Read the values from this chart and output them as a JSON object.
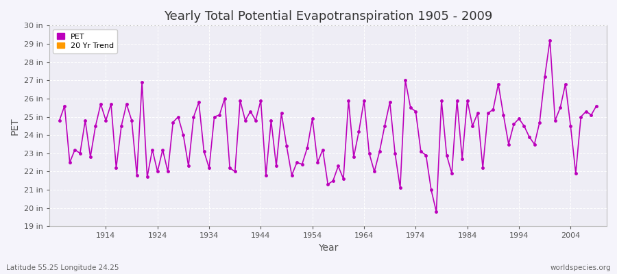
{
  "title": "Yearly Total Potential Evapotranspiration 1905 - 2009",
  "xlabel": "Year",
  "ylabel": "PET",
  "subtitle_left": "Latitude 55.25 Longitude 24.25",
  "subtitle_right": "worldspecies.org",
  "background_color": "#f5f4fb",
  "plot_bg_color": "#eeedf5",
  "grid_color": "#ffffff",
  "line_color": "#bb00bb",
  "trend_color": "#ff9900",
  "ylim_min": 19,
  "ylim_max": 30,
  "ytick_labels": [
    "19 in",
    "20 in",
    "21 in",
    "22 in",
    "23 in",
    "24 in",
    "25 in",
    "26 in",
    "27 in",
    "28 in",
    "29 in",
    "30 in"
  ],
  "ytick_values": [
    19,
    20,
    21,
    22,
    23,
    24,
    25,
    26,
    27,
    28,
    29,
    30
  ],
  "xtick_years": [
    1914,
    1924,
    1934,
    1944,
    1954,
    1964,
    1974,
    1984,
    1994,
    2004
  ],
  "years": [
    1905,
    1906,
    1907,
    1908,
    1909,
    1910,
    1911,
    1912,
    1913,
    1914,
    1915,
    1916,
    1917,
    1918,
    1919,
    1920,
    1921,
    1922,
    1923,
    1924,
    1925,
    1926,
    1927,
    1928,
    1929,
    1930,
    1931,
    1932,
    1933,
    1934,
    1935,
    1936,
    1937,
    1938,
    1939,
    1940,
    1941,
    1942,
    1943,
    1944,
    1945,
    1946,
    1947,
    1948,
    1949,
    1950,
    1951,
    1952,
    1953,
    1954,
    1955,
    1956,
    1957,
    1958,
    1959,
    1960,
    1961,
    1962,
    1963,
    1964,
    1965,
    1966,
    1967,
    1968,
    1969,
    1970,
    1971,
    1972,
    1973,
    1974,
    1975,
    1976,
    1977,
    1978,
    1979,
    1980,
    1981,
    1982,
    1983,
    1984,
    1985,
    1986,
    1987,
    1988,
    1989,
    1990,
    1991,
    1992,
    1993,
    1994,
    1995,
    1996,
    1997,
    1998,
    1999,
    2000,
    2001,
    2002,
    2003,
    2004,
    2005,
    2006,
    2007,
    2008,
    2009
  ],
  "pet_values": [
    24.8,
    25.6,
    22.5,
    23.2,
    23.0,
    24.8,
    22.8,
    24.5,
    25.7,
    24.8,
    25.7,
    22.2,
    24.5,
    25.7,
    24.8,
    21.8,
    26.9,
    21.7,
    23.2,
    22.0,
    23.2,
    22.0,
    24.7,
    25.0,
    24.0,
    22.3,
    25.0,
    25.8,
    23.1,
    22.2,
    25.0,
    25.1,
    26.0,
    22.2,
    22.0,
    25.9,
    24.8,
    25.3,
    24.8,
    25.9,
    21.8,
    24.8,
    22.3,
    25.2,
    23.4,
    21.8,
    22.5,
    22.4,
    23.3,
    24.9,
    22.5,
    23.2,
    21.3,
    21.5,
    22.3,
    21.6,
    25.9,
    22.8,
    24.2,
    25.9,
    23.0,
    22.0,
    23.1,
    24.5,
    25.8,
    23.0,
    21.1,
    27.0,
    25.5,
    25.3,
    23.1,
    22.9,
    21.0,
    19.8,
    25.9,
    22.9,
    21.9,
    25.9,
    22.7,
    25.9,
    24.5,
    25.2,
    22.2,
    25.2,
    25.4,
    26.8,
    25.1,
    23.5,
    24.6,
    24.9,
    24.5,
    23.9,
    23.5,
    24.7,
    27.2,
    29.2,
    24.8,
    25.5,
    26.8,
    24.5,
    21.9,
    25.0,
    25.3,
    25.1,
    25.6
  ],
  "legend_pet_label": "PET",
  "legend_trend_label": "20 Yr Trend"
}
